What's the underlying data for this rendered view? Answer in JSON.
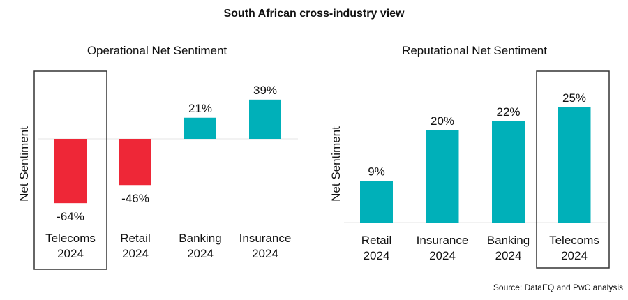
{
  "title": "South African cross-industry view",
  "source": "Source: DataEQ and PwC analysis",
  "colors": {
    "positive": "#00B0B9",
    "negative": "#EE2737",
    "highlight_box": "#333333",
    "zero_line": "#EEEEEE"
  },
  "chart_data": [
    {
      "type": "bar",
      "title": "Operational Net Sentiment",
      "ylabel": "Net Sentiment",
      "categories": [
        "Telecoms 2024",
        "Retail 2024",
        "Banking 2024",
        "Insurance 2024"
      ],
      "category_lines": [
        [
          "Telecoms",
          "2024"
        ],
        [
          "Retail",
          "2024"
        ],
        [
          "Banking",
          "2024"
        ],
        [
          "Insurance",
          "2024"
        ]
      ],
      "values": [
        -64,
        -46,
        21,
        39
      ],
      "data_labels": [
        "-64%",
        "-46%",
        "21%",
        "39%"
      ],
      "highlighted": "Telecoms 2024",
      "ylim": [
        -64,
        39
      ],
      "grid": false
    },
    {
      "type": "bar",
      "title": "Reputational Net Sentiment",
      "ylabel": "Net Sentiment",
      "categories": [
        "Retail 2024",
        "Insurance 2024",
        "Banking 2024",
        "Telecoms 2024"
      ],
      "category_lines": [
        [
          "Retail",
          "2024"
        ],
        [
          "Insurance",
          "2024"
        ],
        [
          "Banking",
          "2024"
        ],
        [
          "Telecoms",
          "2024"
        ]
      ],
      "values": [
        9,
        20,
        22,
        25
      ],
      "data_labels": [
        "9%",
        "20%",
        "22%",
        "25%"
      ],
      "highlighted": "Telecoms 2024",
      "ylim": [
        0,
        25
      ],
      "grid": false
    }
  ]
}
